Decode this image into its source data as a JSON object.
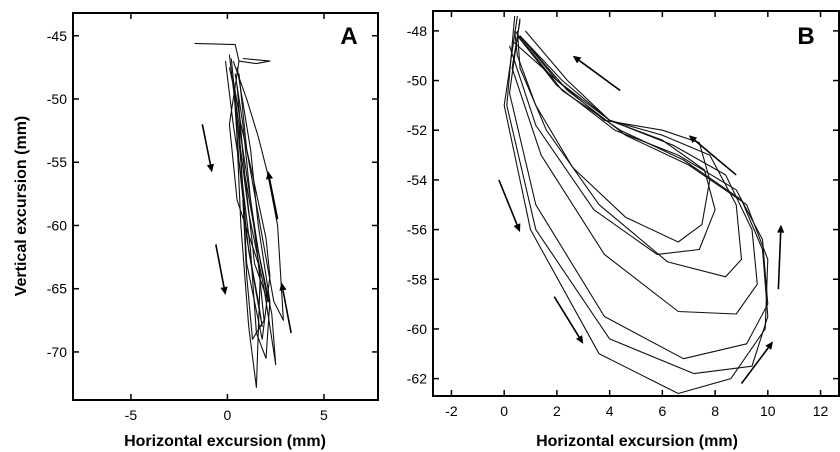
{
  "colors": {
    "ink": "#000000",
    "background": "#ffffff"
  },
  "chart_data": [
    {
      "type": "line",
      "panel_label": "A",
      "xlabel": "Horizontal excursion (mm)",
      "ylabel": "Vertical excursion (mm)",
      "xlim": [
        -8,
        7.8
      ],
      "ylim": [
        -73.8,
        -43.2
      ],
      "xticks": [
        -5,
        0,
        5
      ],
      "yticks": [
        -45,
        -50,
        -55,
        -60,
        -65,
        -70
      ],
      "grid": false,
      "series": [
        {
          "x": [
            -1.7,
            0.4,
            0.6,
            0.1,
            0.5,
            1.6,
            1.9,
            1.3,
            1.0,
            0.8
          ],
          "y": [
            -45.6,
            -45.7,
            -47.0,
            -52.0,
            -58.0,
            -63.0,
            -67.5,
            -69.0,
            -64.0,
            -58.0
          ]
        },
        {
          "x": [
            0.2,
            0.4,
            0.7,
            1.0,
            1.6,
            1.8,
            1.1,
            0.6,
            0.3
          ],
          "y": [
            -46.8,
            -50.0,
            -55.0,
            -61.0,
            -66.0,
            -68.0,
            -62.0,
            -55.0,
            -48.5
          ]
        },
        {
          "x": [
            -0.1,
            0.3,
            0.8,
            1.2,
            1.5,
            2.0,
            2.2,
            1.6,
            1.2,
            0.5
          ],
          "y": [
            -47.0,
            -52.0,
            -57.0,
            -62.0,
            -68.5,
            -70.5,
            -66.0,
            -60.0,
            -54.0,
            -47.5
          ]
        },
        {
          "x": [
            0.4,
            0.8,
            1.2,
            1.7,
            1.5,
            1.1,
            0.7,
            0.4
          ],
          "y": [
            -48.0,
            -52.0,
            -58.0,
            -64.0,
            -72.8,
            -68.0,
            -60.0,
            -50.0
          ]
        },
        {
          "x": [
            0.3,
            1.0,
            1.6,
            2.1,
            2.6,
            2.9,
            2.4,
            1.7,
            1.0,
            0.6
          ],
          "y": [
            -47.0,
            -50.0,
            -53.0,
            -56.0,
            -60.0,
            -67.5,
            -66.0,
            -60.0,
            -54.0,
            -48.0
          ]
        },
        {
          "x": [
            0.1,
            0.6,
            1.1,
            1.9,
            2.5,
            2.3,
            1.6,
            0.9,
            0.3
          ],
          "y": [
            -46.5,
            -53.0,
            -59.0,
            -65.0,
            -71.0,
            -67.0,
            -62.0,
            -55.0,
            -49.0
          ]
        },
        {
          "x": [
            0.1,
            0.6,
            0.9,
            1.6,
            2.1,
            1.4,
            0.9,
            0.5
          ],
          "y": [
            -47.5,
            -51.0,
            -56.0,
            -62.0,
            -66.0,
            -63.0,
            -56.0,
            -49.0
          ]
        },
        {
          "x": [
            0.3,
            0.7,
            1.3,
            2.0,
            2.2,
            1.8,
            1.0,
            0.6
          ],
          "y": [
            -48.5,
            -52.0,
            -56.0,
            -61.0,
            -64.0,
            -69.0,
            -63.0,
            -52.0
          ]
        },
        {
          "x": [
            0.8,
            2.2,
            1.5,
            0.6
          ],
          "y": [
            -46.8,
            -47.0,
            -47.2,
            -47.0
          ]
        }
      ],
      "arrows": [
        {
          "from": [
            -1.3,
            -52.0
          ],
          "to": [
            -0.8,
            -55.8
          ]
        },
        {
          "from": [
            -0.6,
            -61.5
          ],
          "to": [
            -0.1,
            -65.5
          ]
        },
        {
          "from": [
            2.6,
            -59.5
          ],
          "to": [
            2.1,
            -55.7
          ]
        },
        {
          "from": [
            3.3,
            -68.5
          ],
          "to": [
            2.8,
            -64.5
          ]
        }
      ]
    },
    {
      "type": "line",
      "panel_label": "B",
      "xlabel": "Horizontal excursion (mm)",
      "ylabel": "",
      "xlim": [
        -2.7,
        12.7
      ],
      "ylim": [
        -62.7,
        -47.2
      ],
      "xticks": [
        -2,
        0,
        2,
        4,
        6,
        8,
        10,
        12
      ],
      "yticks": [
        -48,
        -50,
        -52,
        -54,
        -56,
        -58,
        -60,
        -62
      ],
      "grid": false,
      "series": [
        {
          "x": [
            0.6,
            2.0,
            3.8,
            6.0,
            7.4,
            7.8,
            7.5,
            6.6,
            4.6,
            2.6,
            1.2,
            0.5,
            0.4
          ],
          "y": [
            -48.2,
            -50.0,
            -51.6,
            -52.0,
            -52.5,
            -54.0,
            -55.8,
            -56.5,
            -55.5,
            -53.5,
            -51.0,
            -49.0,
            -48.0
          ]
        },
        {
          "x": [
            0.8,
            2.4,
            4.0,
            6.0,
            7.8,
            8.8,
            9.0,
            8.4,
            6.2,
            3.6,
            1.6,
            0.6,
            0.5
          ],
          "y": [
            -48.0,
            -50.0,
            -51.6,
            -52.2,
            -53.0,
            -55.0,
            -57.2,
            -57.9,
            -57.3,
            -55.0,
            -52.0,
            -49.5,
            -48.0
          ]
        },
        {
          "x": [
            0.6,
            2.2,
            4.0,
            6.4,
            8.4,
            9.4,
            9.6,
            8.8,
            6.6,
            3.8,
            1.4,
            0.3,
            0.6
          ],
          "y": [
            -48.2,
            -50.0,
            -51.6,
            -52.6,
            -53.8,
            -56.0,
            -58.2,
            -59.4,
            -59.3,
            -57.0,
            -53.0,
            -49.5,
            -47.6
          ]
        },
        {
          "x": [
            0.5,
            2.0,
            4.2,
            6.6,
            8.8,
            9.8,
            10.0,
            9.2,
            6.8,
            3.8,
            1.2,
            0.2,
            0.6
          ],
          "y": [
            -48.2,
            -50.2,
            -52.0,
            -53.0,
            -54.4,
            -56.4,
            -59.0,
            -60.6,
            -61.2,
            -59.5,
            -55.0,
            -50.5,
            -47.5
          ]
        },
        {
          "x": [
            0.4,
            2.2,
            4.4,
            6.8,
            9.0,
            9.8,
            10.0,
            9.4,
            7.2,
            4.0,
            1.2,
            0.1,
            0.4
          ],
          "y": [
            -48.0,
            -50.4,
            -52.0,
            -53.2,
            -54.8,
            -56.8,
            -59.5,
            -61.5,
            -61.8,
            -60.4,
            -56.0,
            -51.0,
            -47.4
          ]
        },
        {
          "x": [
            0.6,
            2.4,
            4.6,
            7.0,
            9.2,
            10.0,
            9.9,
            8.6,
            6.6,
            3.6,
            1.0,
            0.0,
            0.5
          ],
          "y": [
            -48.2,
            -50.4,
            -52.2,
            -53.4,
            -55.0,
            -57.2,
            -60.0,
            -62.0,
            -62.6,
            -61.0,
            -56.0,
            -51.0,
            -47.4
          ]
        },
        {
          "x": [
            0.3,
            2.0,
            4.0,
            6.0,
            7.6,
            8.0,
            7.4,
            5.8,
            3.4,
            1.2,
            0.2
          ],
          "y": [
            -48.4,
            -50.0,
            -51.6,
            -52.4,
            -53.6,
            -55.2,
            -56.8,
            -57.0,
            -55.2,
            -51.8,
            -48.6
          ]
        }
      ],
      "arrows": [
        {
          "from": [
            4.4,
            -50.4
          ],
          "to": [
            2.6,
            -49.0
          ]
        },
        {
          "from": [
            8.8,
            -53.8
          ],
          "to": [
            7.0,
            -52.2
          ]
        },
        {
          "from": [
            -0.2,
            -54.0
          ],
          "to": [
            0.6,
            -56.1
          ]
        },
        {
          "from": [
            1.9,
            -58.7
          ],
          "to": [
            3.0,
            -60.6
          ]
        },
        {
          "from": [
            10.4,
            -58.4
          ],
          "to": [
            10.5,
            -55.8
          ]
        },
        {
          "from": [
            9.0,
            -62.2
          ],
          "to": [
            10.2,
            -60.5
          ]
        }
      ]
    }
  ]
}
